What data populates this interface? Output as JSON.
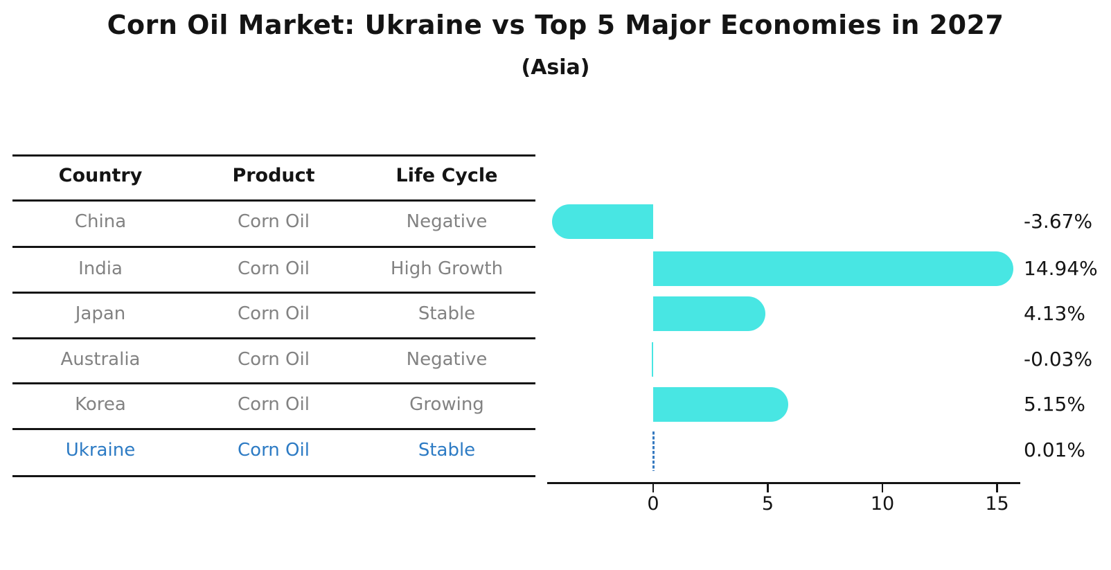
{
  "table": {
    "columns": [
      "Country",
      "Product",
      "Life Cycle"
    ],
    "rows": [
      {
        "country": "China",
        "product": "Corn Oil",
        "life_cycle": "Negative"
      },
      {
        "country": "India",
        "product": "Corn Oil",
        "life_cycle": "High Growth"
      },
      {
        "country": "Japan",
        "product": "Corn Oil",
        "life_cycle": "Stable"
      },
      {
        "country": "Australia",
        "product": "Corn Oil",
        "life_cycle": "Negative"
      },
      {
        "country": "Korea",
        "product": "Corn Oil",
        "life_cycle": "Growing"
      },
      {
        "country": "Ukraine",
        "product": "Corn Oil",
        "life_cycle": "Stable"
      }
    ],
    "text_color": "#828282",
    "highlight_text_color": "#2d7bc4"
  },
  "chart_data": {
    "type": "bar",
    "orientation": "horizontal",
    "title": "Corn Oil Market: Ukraine vs Top 5 Major Economies in 2027",
    "subtitle": "(Asia)",
    "categories": [
      "China",
      "India",
      "Japan",
      "Australia",
      "Korea",
      "Ukraine"
    ],
    "values": [
      -3.67,
      14.94,
      4.13,
      -0.03,
      5.15,
      0.01
    ],
    "value_labels": [
      "-3.67%",
      "14.94%",
      "4.13%",
      "-0.03%",
      "5.15%",
      "0.01%"
    ],
    "x_tick_labels": [
      "0",
      "5",
      "10",
      "15"
    ],
    "x_tick_values": [
      0,
      5,
      10,
      15
    ],
    "xlim": [
      -4.6,
      16.1
    ],
    "grid": false,
    "legend": false,
    "bar_color": "#48e6e3",
    "axis_color": "#141414",
    "highlight_country": "Ukraine",
    "highlight_line_color": "#3579c0",
    "highlight_line_style": "dashed"
  }
}
